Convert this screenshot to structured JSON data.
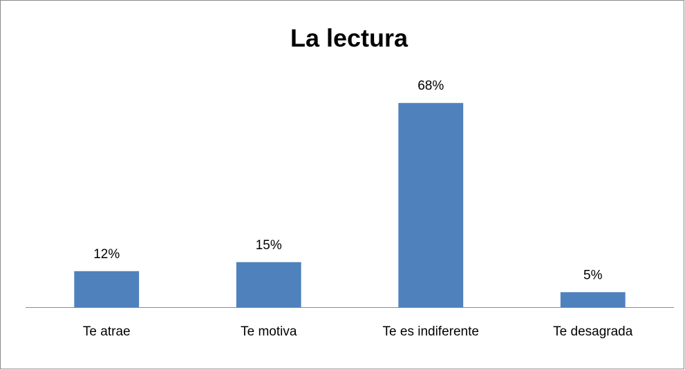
{
  "chart_data": {
    "type": "bar",
    "title": "La lectura",
    "categories": [
      "Te atrae",
      "Te motiva",
      "Te es indiferente",
      "Te desagrada"
    ],
    "values": [
      12,
      15,
      68,
      5
    ],
    "value_labels": [
      "12%",
      "15%",
      "68%",
      "5%"
    ],
    "color": "#4f81bd"
  }
}
